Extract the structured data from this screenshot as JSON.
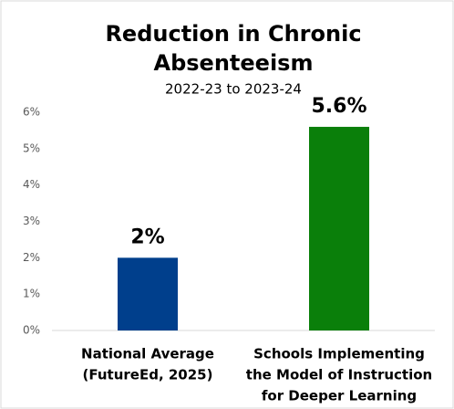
{
  "chart_data": {
    "type": "bar",
    "title": [
      "Reduction in Chronic",
      "Absenteeism"
    ],
    "subtitle": "2022-23 to 2023-24",
    "categories": [
      [
        "National Average",
        "(FutureEd, 2025)"
      ],
      [
        "Schools Implementing",
        "the Model of Instruction",
        "for Deeper Learning"
      ]
    ],
    "values": [
      2,
      5.6
    ],
    "value_labels": [
      "2%",
      "5.6%"
    ],
    "colors": [
      "#003f8c",
      "#0a7f0a"
    ],
    "ylim": [
      0,
      6
    ],
    "yticks": [
      {
        "value": 0,
        "label": "0%"
      },
      {
        "value": 1,
        "label": "1%"
      },
      {
        "value": 2,
        "label": "2%"
      },
      {
        "value": 3,
        "label": "3%"
      },
      {
        "value": 4,
        "label": "4%"
      },
      {
        "value": 5,
        "label": "5%"
      },
      {
        "value": 6,
        "label": "6%"
      }
    ],
    "grid": false
  }
}
